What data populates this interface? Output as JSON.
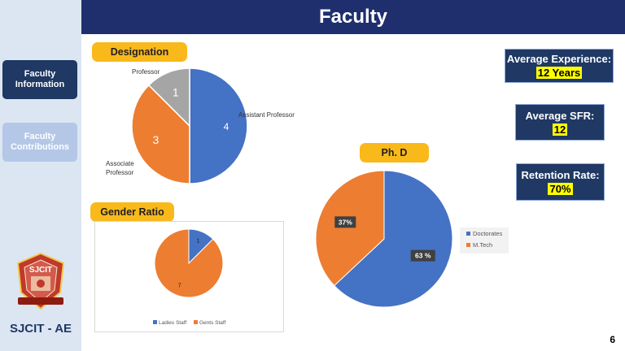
{
  "header": {
    "title": "Faculty"
  },
  "sidebar": {
    "items": [
      {
        "label": "Faculty Information"
      },
      {
        "label": "Faculty Contributions"
      }
    ],
    "brand": "SJCIT - AE",
    "logo_text": "SJCIT"
  },
  "stats": {
    "experience": {
      "label": "Average Experience:",
      "value": "12 Years"
    },
    "sfr": {
      "label": "Average SFR:",
      "value": "12"
    },
    "retention": {
      "label": "Retention Rate:",
      "value": "70%"
    }
  },
  "page_number": "6",
  "chart_data": [
    {
      "type": "pie",
      "title": "Designation",
      "categories": [
        "Assistant Professor",
        "Associate Professor",
        "Professor"
      ],
      "values": [
        4,
        3,
        1
      ],
      "data_labels": [
        "4",
        "3",
        "1"
      ],
      "colors": [
        "#4472c4",
        "#ed7d31",
        "#a5a5a5"
      ]
    },
    {
      "type": "pie",
      "title": "Gender Ratio",
      "categories": [
        "Ladies Staff",
        "Gents Staff"
      ],
      "values": [
        1,
        7
      ],
      "data_labels": [
        "1",
        "7"
      ],
      "colors": [
        "#4472c4",
        "#ed7d31"
      ],
      "legend": "bottom"
    },
    {
      "type": "pie",
      "title": "Ph. D",
      "categories": [
        "Doctorates",
        "M.Tech"
      ],
      "values": [
        63,
        37
      ],
      "data_labels": [
        "63 %",
        "37%"
      ],
      "colors": [
        "#4472c4",
        "#ed7d31"
      ],
      "legend": "right"
    }
  ]
}
